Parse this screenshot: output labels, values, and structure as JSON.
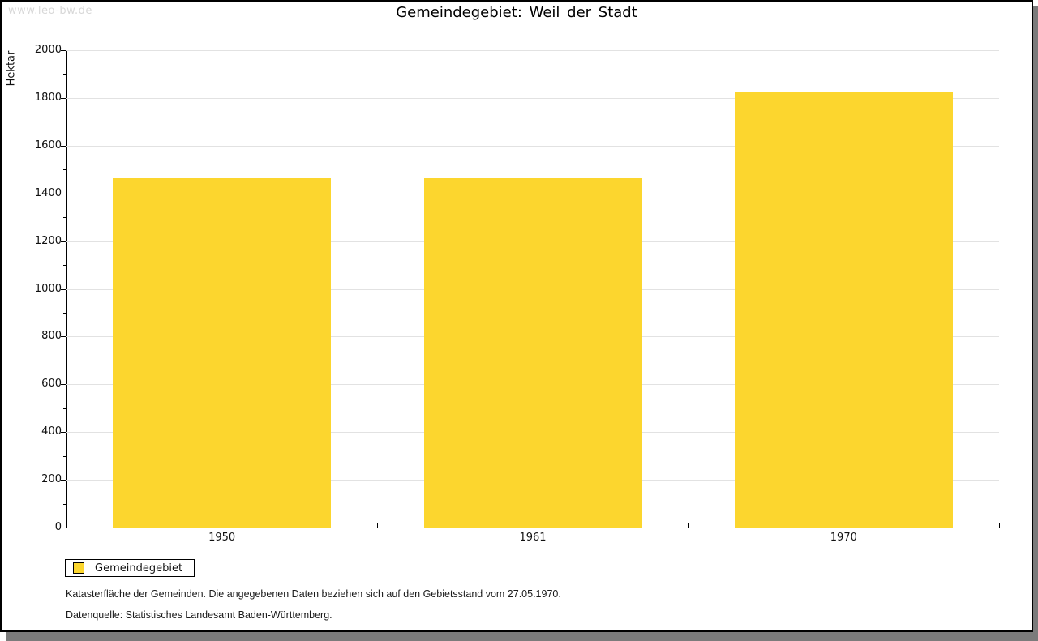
{
  "watermark": "www.leo-bw.de",
  "header": {
    "title": "Gemeindegebiet: Weil der Stadt"
  },
  "chart_data": {
    "type": "bar",
    "title": "Gemeindegebiet: Weil der Stadt",
    "categories": [
      "1950",
      "1961",
      "1970"
    ],
    "series": [
      {
        "name": "Gemeindegebiet",
        "values": [
          1465,
          1465,
          1822
        ],
        "color": "#fcd62e"
      }
    ],
    "xlabel": "",
    "ylabel": "Hektar",
    "ylim": [
      0,
      2000
    ],
    "ytick_major": 200,
    "ytick_minor": 100,
    "grid": true,
    "legend_position": "bottom-left"
  },
  "legend": {
    "items": [
      {
        "label": "Gemeindegebiet",
        "color": "#fcd62e"
      }
    ]
  },
  "notes": {
    "line1": "Katasterfläche der Gemeinden. Die angegebenen Daten beziehen sich auf den Gebietsstand vom 27.05.1970.",
    "line2": "Datenquelle: Statistisches Landesamt Baden-Württemberg."
  },
  "colors": {
    "bar": "#fcd62e",
    "shadow": "#7b7b7b",
    "grid": "#e2e2e2",
    "axis": "#000000",
    "watermark_text": "#d8d8d8"
  }
}
